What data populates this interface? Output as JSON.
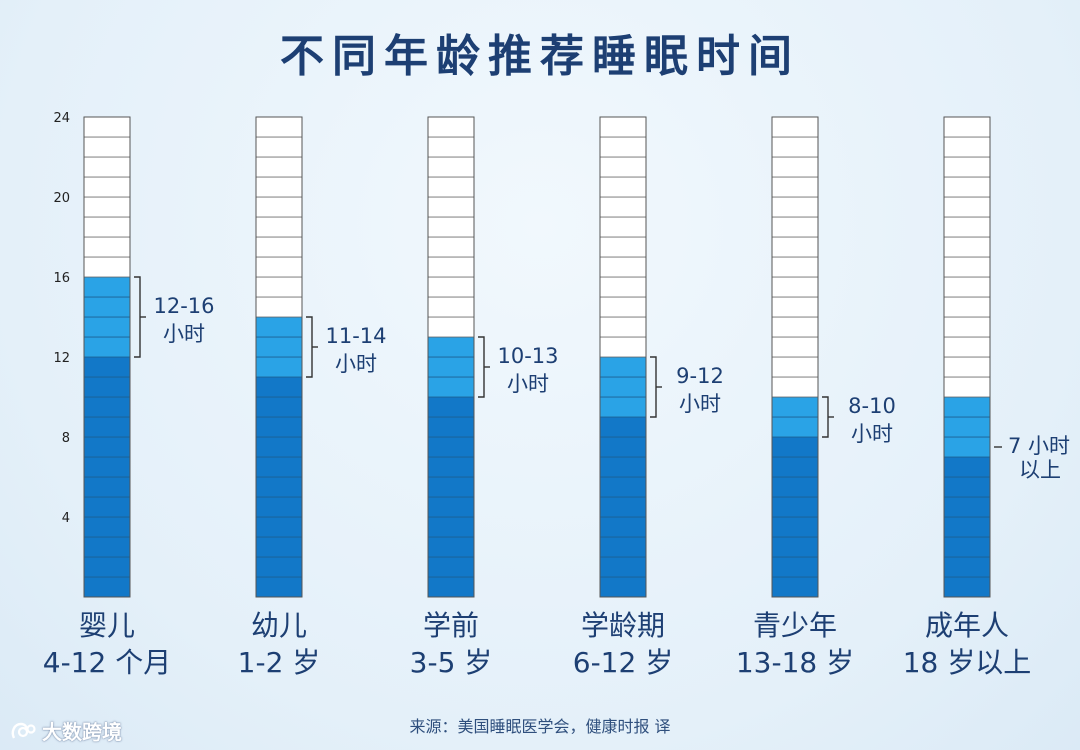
{
  "title": "不同年龄推荐睡眠时间",
  "source": "来源：美国睡眠医学会，健康时报 译",
  "watermark": "大数跨境",
  "colors": {
    "title": "#1d3f73",
    "recommended": "#2aa3e6",
    "base": "#1278c8",
    "empty": "#ffffff",
    "cell_line": "#6b6b6b",
    "label_text": "#1d3f73"
  },
  "chart_data": {
    "type": "bar",
    "title": "不同年龄推荐睡眠时间",
    "ylim": [
      0,
      24
    ],
    "y_ticks": [
      4,
      8,
      12,
      16,
      20,
      24
    ],
    "grid": false,
    "categories": [
      "婴儿\n4-12 个月",
      "幼儿\n1-2 岁",
      "学前\n3-5 岁",
      "学龄期\n6-12 岁",
      "青少年\n13-18 岁",
      "成年人\n18 岁以上"
    ],
    "bars": [
      {
        "name": "婴儿",
        "age": "4-12 个月",
        "min": 12,
        "max": 16,
        "label_line1": "12-16",
        "label_line2": "小时"
      },
      {
        "name": "幼儿",
        "age": "1-2 岁",
        "min": 11,
        "max": 14,
        "label_line1": "11-14",
        "label_line2": "小时"
      },
      {
        "name": "学前",
        "age": "3-5 岁",
        "min": 10,
        "max": 13,
        "label_line1": "10-13",
        "label_line2": "小时"
      },
      {
        "name": "学龄期",
        "age": "6-12 岁",
        "min": 9,
        "max": 12,
        "label_line1": "9-12",
        "label_line2": "小时"
      },
      {
        "name": "青少年",
        "age": "13-18 岁",
        "min": 8,
        "max": 10,
        "label_line1": "8-10",
        "label_line2": "小时"
      },
      {
        "name": "成年人",
        "age": "18 岁以上",
        "min": 7,
        "max": 10,
        "label_line1": "7 小时",
        "label_line2": "以上"
      }
    ]
  }
}
